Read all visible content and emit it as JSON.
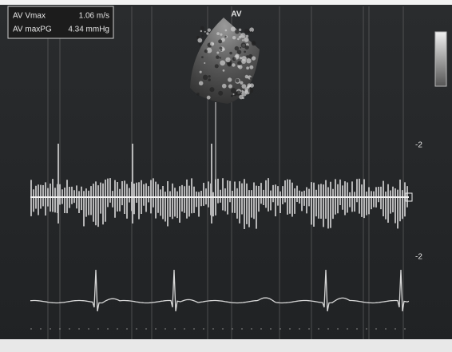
{
  "measurements": [
    {
      "label": "AV Vmax",
      "value": "1.06 m/s"
    },
    {
      "label": "AV maxPG",
      "value": "4.34 mmHg"
    }
  ],
  "view_label": "AV",
  "scale_labels": [
    "-2",
    "-2"
  ]
}
